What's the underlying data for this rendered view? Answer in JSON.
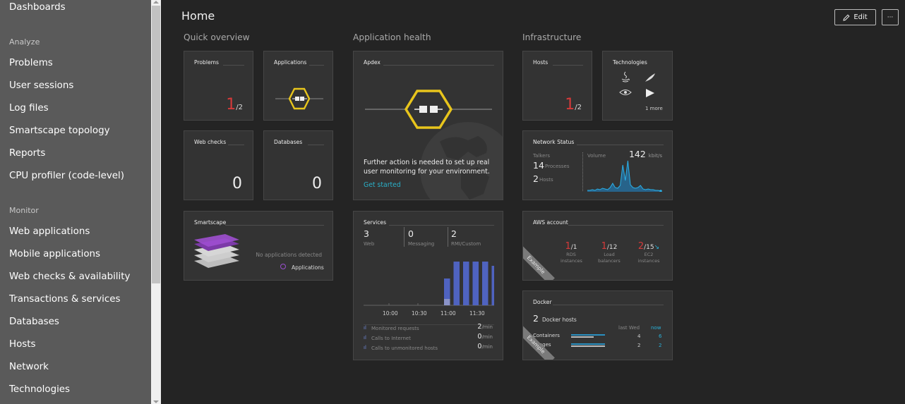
{
  "sidebar": {
    "top_item": "Dashboards",
    "analyze_label": "Analyze",
    "analyze_items": [
      "Problems",
      "User sessions",
      "Log files",
      "Smartscape topology",
      "Reports",
      "CPU profiler (code-level)"
    ],
    "monitor_label": "Monitor",
    "monitor_items": [
      "Web applications",
      "Mobile applications",
      "Web checks & availability",
      "Transactions & services",
      "Databases",
      "Hosts",
      "Network",
      "Technologies"
    ]
  },
  "header": {
    "title": "Home",
    "edit_label": "Edit",
    "more_label": "···"
  },
  "groups": {
    "quick": "Quick overview",
    "app_health": "Application health",
    "infra": "Infrastructure"
  },
  "tiles": {
    "problems": {
      "title": "Problems",
      "num": "1",
      "den": "/2"
    },
    "applications": {
      "title": "Applications"
    },
    "webchecks": {
      "title": "Web checks",
      "value": "0"
    },
    "databases": {
      "title": "Databases",
      "value": "0"
    },
    "smartscape": {
      "title": "Smartscape",
      "note": "No applications detected",
      "legend": "Applications"
    },
    "apdex": {
      "title": "Apdex",
      "message": "Further action is needed to set up real user monitoring for your environment.",
      "link": "Get started"
    },
    "services": {
      "title": "Services",
      "counts": [
        {
          "value": "3",
          "label": "Web"
        },
        {
          "value": "0",
          "label": "Messaging"
        },
        {
          "value": "2",
          "label": "RMI/Custom"
        }
      ],
      "times": [
        "10:00",
        "10:30",
        "11:00",
        "11:30"
      ],
      "metrics": [
        {
          "label": "Monitored requests",
          "value": "2",
          "unit": "/min"
        },
        {
          "label": "Calls to Internet",
          "value": "0",
          "unit": "/min"
        },
        {
          "label": "Calls to unmonitored hosts",
          "value": "0",
          "unit": "/min"
        }
      ]
    },
    "hosts": {
      "title": "Hosts",
      "num": "1",
      "den": "/2"
    },
    "technologies": {
      "title": "Technologies",
      "more": "1 more"
    },
    "network": {
      "title": "Network Status",
      "talkers_label": "Talkers",
      "processes_value": "14",
      "processes_label": "Processes",
      "hosts_value": "2",
      "hosts_label": "Hosts",
      "volume_label": "Volume",
      "volume_value": "142",
      "volume_unit": "kbit/s"
    },
    "aws": {
      "title": "AWS account",
      "items": [
        {
          "num": "1",
          "den": "/1",
          "label1": "RDS",
          "label2": "instances"
        },
        {
          "num": "1",
          "den": "/12",
          "label1": "Load",
          "label2": "balancers"
        },
        {
          "num": "2",
          "den": "/15",
          "label1": "EC2",
          "label2": "instances"
        }
      ],
      "badge": "Example"
    },
    "docker": {
      "title": "Docker",
      "hosts_value": "2",
      "hosts_label": "Docker hosts",
      "col_last": "last Wed",
      "col_now": "now",
      "rows": [
        {
          "label": "Containers",
          "last": "4",
          "now": "6"
        },
        {
          "label": "Images",
          "last": "2",
          "now": "2"
        }
      ],
      "badge": "Example"
    }
  },
  "chart_data": [
    {
      "type": "bar",
      "title": "Services",
      "x": [
        "11:00",
        "11:05",
        "11:10",
        "11:15",
        "11:20",
        "11:25"
      ],
      "values": [
        38,
        62,
        62,
        62,
        62,
        56
      ],
      "x_ticks": [
        "10:00",
        "10:30",
        "11:00",
        "11:30"
      ]
    },
    {
      "type": "area",
      "title": "Network Status",
      "series": [
        {
          "values": [
            2,
            2,
            3,
            2,
            4,
            3,
            5,
            4,
            3,
            6,
            12,
            6,
            5,
            9,
            38,
            16,
            44,
            10,
            6,
            5,
            6,
            9,
            4,
            3,
            4,
            3,
            3,
            2,
            2,
            1
          ]
        }
      ]
    }
  ]
}
